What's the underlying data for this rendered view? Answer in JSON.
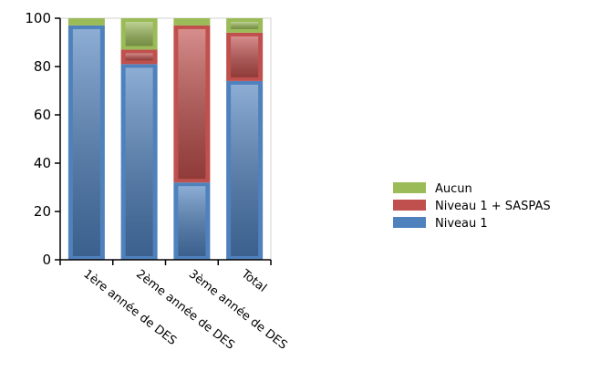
{
  "chart_data": {
    "type": "bar",
    "stacked": true,
    "categories": [
      "1ère année de DES",
      "2ème année de DES",
      "3ème année de DES",
      "Total"
    ],
    "series": [
      {
        "name": "Niveau 1",
        "color": "#4f81bd",
        "values": [
          97,
          81,
          32,
          74
        ]
      },
      {
        "name": "Niveau 1 + SASPAS",
        "color": "#c0504d",
        "values": [
          0,
          6,
          65,
          20
        ]
      },
      {
        "name": "Aucun",
        "color": "#9bbb59",
        "values": [
          3,
          13,
          3,
          6
        ]
      }
    ],
    "ylim": [
      0,
      100
    ],
    "yticks": [
      0,
      20,
      40,
      60,
      80,
      100
    ],
    "grid": false,
    "legend": {
      "placement": "right",
      "order": [
        "Aucun",
        "Niveau 1 + SASPAS",
        "Niveau 1"
      ]
    }
  }
}
